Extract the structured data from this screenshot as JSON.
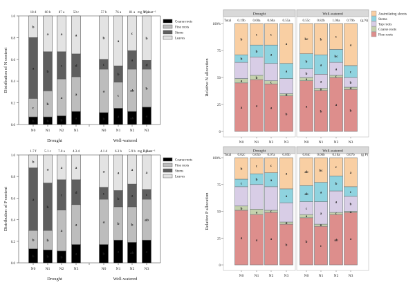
{
  "chart_data": [
    {
      "id": "n-content",
      "type": "bar",
      "stacked": true,
      "title": "",
      "ylabel": "Distribution of N content",
      "ylim": [
        0,
        1.0
      ],
      "yticks": [
        "0.0",
        "0.2",
        "0.4",
        "0.6",
        "0.8",
        "1.0"
      ],
      "groups": [
        "Drought",
        "Well-watered"
      ],
      "categories": [
        "N0",
        "N1",
        "N2",
        "N3"
      ],
      "unit_label": "mg N plant⁻¹",
      "totals": [
        [
          "18 d",
          "60 b",
          "87 a",
          "50 c"
        ],
        [
          "57 b",
          "76 a",
          "81 a",
          "69 c"
        ]
      ],
      "legend": [
        "Coarse roots",
        "Fine roots",
        "Stems",
        "Leaves"
      ],
      "colors": [
        "#000000",
        "#bdbdbd",
        "#5f5f5f",
        "#e3e3e3"
      ],
      "series": [
        {
          "name": "Coarse roots",
          "values": [
            [
              0.07,
              0.07,
              0.08,
              0.12
            ],
            [
              0.11,
              0.15,
              0.12,
              0.16
            ]
          ],
          "letters": [
            [
              "b",
              "b",
              "b",
              "a"
            ],
            [
              "b",
              "a",
              "ab",
              "a"
            ]
          ]
        },
        {
          "name": "Fine roots",
          "values": [
            [
              0.17,
              0.24,
              0.34,
              0.32
            ],
            [
              0.4,
              0.24,
              0.39,
              0.35
            ]
          ],
          "letters": [
            [
              "c",
              "b",
              "a",
              "a"
            ],
            [
              "a",
              "c",
              "ab",
              "b"
            ]
          ]
        },
        {
          "name": "Stems",
          "values": [
            [
              0.56,
              0.36,
              0.25,
              0.21
            ],
            [
              0.09,
              0.15,
              0.17,
              0.08
            ]
          ],
          "letters": [
            [
              "a",
              "b",
              "c",
              "d"
            ],
            [
              "c",
              "b",
              "a",
              "d"
            ]
          ]
        },
        {
          "name": "Leaves",
          "values": [
            [
              0.2,
              0.33,
              0.33,
              0.35
            ],
            [
              0.4,
              0.46,
              0.32,
              0.41
            ]
          ],
          "letters": [
            [
              "b",
              "a",
              "a",
              "a"
            ],
            [
              "b",
              "a",
              "c",
              "b"
            ]
          ]
        }
      ]
    },
    {
      "id": "p-content",
      "type": "bar",
      "stacked": true,
      "title": "",
      "ylabel": "Distribution of P content",
      "ylim": [
        0,
        1.0
      ],
      "yticks": [
        "0.0",
        "0.2",
        "0.4",
        "0.6",
        "0.8",
        "1.0"
      ],
      "groups": [
        "Drought",
        "Well-watered"
      ],
      "categories": [
        "N0",
        "N1",
        "N2",
        "N3"
      ],
      "unit_label": "mg P plant⁻¹",
      "totals": [
        [
          "1.7 f",
          "5.1 c",
          "7.0 a",
          "4.3 d"
        ],
        [
          "4.1 d",
          "6.3 b",
          "5.9 b",
          "3.2 e"
        ]
      ],
      "legend": [
        "Coarse roots",
        "Fine roots",
        "Stems",
        "Leaves"
      ],
      "colors": [
        "#000000",
        "#bdbdbd",
        "#5f5f5f",
        "#e3e3e3"
      ],
      "series": [
        {
          "name": "Coarse roots",
          "values": [
            [
              0.13,
              0.12,
              0.11,
              0.17
            ],
            [
              0.17,
              0.21,
              0.19,
              0.21
            ]
          ],
          "letters": [
            [
              "b",
              "b",
              "b",
              "a"
            ],
            [
              "b",
              "a",
              "ab",
              "a"
            ]
          ]
        },
        {
          "name": "Fine roots",
          "values": [
            [
              0.17,
              0.18,
              0.38,
              0.37
            ],
            [
              0.42,
              0.31,
              0.33,
              0.38
            ]
          ],
          "letters": [
            [
              "b",
              "b",
              "a",
              "a"
            ],
            [
              "a",
              "b",
              "b",
              "ab"
            ]
          ]
        },
        {
          "name": "Stems",
          "values": [
            [
              0.58,
              0.44,
              0.28,
              0.23
            ],
            [
              0.11,
              0.15,
              0.21,
              0.09
            ]
          ],
          "letters": [
            [
              "a",
              "b",
              "c",
              "d"
            ],
            [
              "c",
              "b",
              "a",
              "c"
            ]
          ]
        },
        {
          "name": "Leaves",
          "values": [
            [
              0.12,
              0.26,
              0.23,
              0.23
            ],
            [
              0.3,
              0.33,
              0.27,
              0.32
            ]
          ],
          "letters": [
            [
              "b",
              "a",
              "a",
              "a"
            ],
            [
              "a",
              "a",
              "a",
              "a"
            ]
          ]
        }
      ],
      "xlabel_groups": [
        "Drought",
        "Well-watered"
      ]
    },
    {
      "id": "n-allocation",
      "type": "bar",
      "stacked": true,
      "ylabel": "Relative N allocation",
      "ylim": [
        0,
        100
      ],
      "yticks": [
        "0",
        "25",
        "50",
        "75",
        "100%"
      ],
      "panels": [
        "Drought",
        "Well-watered"
      ],
      "categories": [
        "N0",
        "N1",
        "N2",
        "N3"
      ],
      "total_label": "Total",
      "unit_label": "(g N)",
      "totals": [
        [
          "0.19b",
          "0.60a",
          "0.60a",
          "0.55a"
        ],
        [
          "0.55c",
          "0.82b",
          "1.06a",
          "0.79b"
        ]
      ],
      "legend": [
        "Assimilating shoots",
        "Stems",
        "Tap roots",
        "Coarse roots",
        "Fine roots"
      ],
      "colors": [
        "#f9cfa3",
        "#8fd3df",
        "#d8cde6",
        "#c4d1ad",
        "#dd8e8c"
      ],
      "series": [
        {
          "name": "Fine roots",
          "values": [
            [
              45,
              48,
              44,
              33
            ],
            [
              47,
              38,
              50,
              39
            ]
          ],
          "letters": [
            [
              "a",
              "a",
              "a",
              "b"
            ],
            [
              "a",
              "b",
              "a",
              "b"
            ]
          ]
        },
        {
          "name": "Coarse roots",
          "values": [
            [
              4,
              4,
              3,
              2
            ],
            [
              3,
              2,
              2,
              2
            ]
          ],
          "letters": [
            [
              "a",
              "b",
              "c",
              "d"
            ],
            [
              "a",
              "b",
              "c",
              "d"
            ]
          ]
        },
        {
          "name": "Tap roots",
          "values": [
            [
              15,
              17,
              16,
              14
            ],
            [
              8,
              13,
              12,
              9
            ]
          ],
          "letters": [
            [
              "",
              "",
              "",
              ""
            ],
            [
              "b",
              "a",
              "a",
              "b"
            ]
          ]
        },
        {
          "name": "Stems",
          "values": [
            [
              7,
              11,
              17,
              14
            ],
            [
              14,
              18,
              12,
              11
            ]
          ],
          "letters": [
            [
              "b",
              "b",
              "a",
              "a"
            ],
            [
              "b",
              "a",
              "bc",
              "c"
            ]
          ]
        },
        {
          "name": "Assimilating shoots",
          "values": [
            [
              29,
              20,
              20,
              37
            ],
            [
              28,
              29,
              24,
              39
            ]
          ],
          "letters": [
            [
              "b",
              "c",
              "c",
              "a"
            ],
            [
              "bc",
              "b",
              "c",
              "a"
            ]
          ]
        }
      ]
    },
    {
      "id": "p-allocation",
      "type": "bar",
      "stacked": true,
      "ylabel": "Relative P allocation",
      "ylim": [
        0,
        100
      ],
      "yticks": [
        "0",
        "25",
        "50",
        "75",
        "100%"
      ],
      "panels": [
        "Drought",
        "Well-watered"
      ],
      "categories": [
        "N0",
        "N1",
        "N2",
        "N3"
      ],
      "total_label": "Total",
      "unit_label": "(g P)",
      "totals": [
        [
          "0.02c",
          "0.05b",
          "0.07a",
          "0.05b"
        ],
        [
          "0.04c",
          "0.06b",
          "0.10a",
          "0.07b"
        ]
      ],
      "legend": [
        "Assimilating shoots",
        "Stems",
        "Tap roots",
        "Coarse roots",
        "Fine roots"
      ],
      "colors": [
        "#f9cfa3",
        "#8fd3df",
        "#d8cde6",
        "#c4d1ad",
        "#dd8e8c"
      ],
      "series": [
        {
          "name": "Fine roots",
          "values": [
            [
              51,
              47,
              49,
              38
            ],
            [
              44,
              36,
              47,
              49
            ]
          ],
          "letters": [
            [
              "a",
              "a",
              "a",
              "b"
            ],
            [
              "b",
              "c",
              "ab",
              "a"
            ]
          ]
        },
        {
          "name": "Coarse roots",
          "values": [
            [
              4,
              5,
              2,
              2
            ],
            [
              3,
              2,
              2,
              1
            ]
          ],
          "letters": [
            [
              "b",
              "a",
              "c",
              "d"
            ],
            [
              "a",
              "b",
              "c",
              "d"
            ]
          ]
        },
        {
          "name": "Tap roots",
          "values": [
            [
              18,
              23,
              22,
              18
            ],
            [
              12,
              21,
              20,
              14
            ]
          ],
          "letters": [
            [
              "",
              "",
              "",
              ""
            ],
            [
              "c",
              "a",
              "a",
              "b"
            ]
          ]
        },
        {
          "name": "Stems",
          "values": [
            [
              7,
              10,
              13,
              13
            ],
            [
              15,
              18,
              14,
              9
            ]
          ],
          "letters": [
            [
              "c",
              "b",
              "a",
              "a"
            ],
            [
              "ab",
              "a",
              "b",
              "c"
            ]
          ]
        },
        {
          "name": "Assimilating shoots",
          "values": [
            [
              20,
              15,
              14,
              29
            ],
            [
              26,
              23,
              17,
              27
            ]
          ],
          "letters": [
            [
              "b",
              "c",
              "c",
              "a"
            ],
            [
              "ab",
              "bc",
              "c",
              "a"
            ]
          ]
        }
      ]
    }
  ]
}
